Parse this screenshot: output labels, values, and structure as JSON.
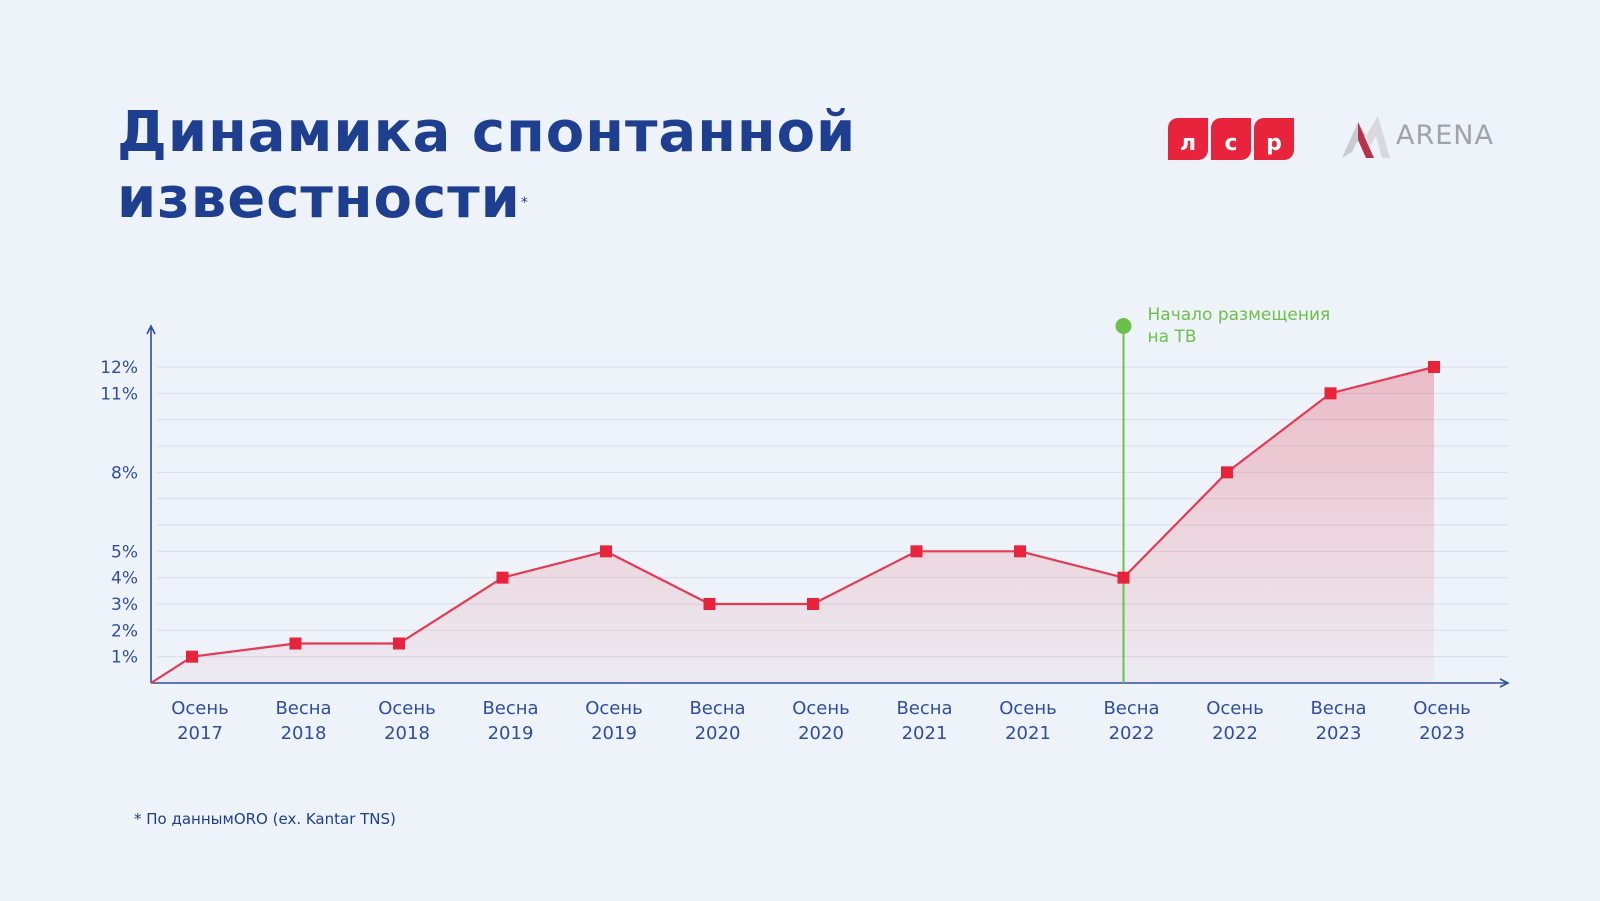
{
  "title": {
    "line1": "Динамика спонтанной",
    "line2": "известности",
    "marker": "*"
  },
  "logos": {
    "lsr_letters": [
      "л",
      "с",
      "р"
    ],
    "arena": "ARENA",
    "lsr_color": "#e8243c"
  },
  "footnote": "* По даннымORO (ex. Kantar TNS)",
  "chart_data": {
    "type": "line",
    "categories": [
      [
        "Осень",
        "2017"
      ],
      [
        "Весна",
        "2018"
      ],
      [
        "Осень",
        "2018"
      ],
      [
        "Весна",
        "2019"
      ],
      [
        "Осень",
        "2019"
      ],
      [
        "Весна",
        "2020"
      ],
      [
        "Осень",
        "2020"
      ],
      [
        "Весна",
        "2021"
      ],
      [
        "Осень",
        "2021"
      ],
      [
        "Весна",
        "2022"
      ],
      [
        "Осень",
        "2022"
      ],
      [
        "Весна",
        "2023"
      ],
      [
        "Осень",
        "2023"
      ]
    ],
    "values": [
      1,
      1.5,
      1.5,
      4,
      5,
      3,
      3,
      5,
      5,
      4,
      8,
      11,
      12
    ],
    "yticks": [
      "1%",
      "2%",
      "3%",
      "4%",
      "5%",
      "8%",
      "11%",
      "12%"
    ],
    "ytick_values": [
      1,
      2,
      3,
      4,
      5,
      8,
      11,
      12
    ],
    "ylim": [
      0,
      13
    ],
    "grid": true,
    "annotation": {
      "category_index": 9,
      "text_line1": "Начало размещения",
      "text_line2": "на ТВ"
    },
    "colors": {
      "line": "#e33b55",
      "marker": "#e8243c",
      "axis": "#2f4e9e",
      "grid": "#d8dfea",
      "annotation": "#6cc04a"
    }
  }
}
